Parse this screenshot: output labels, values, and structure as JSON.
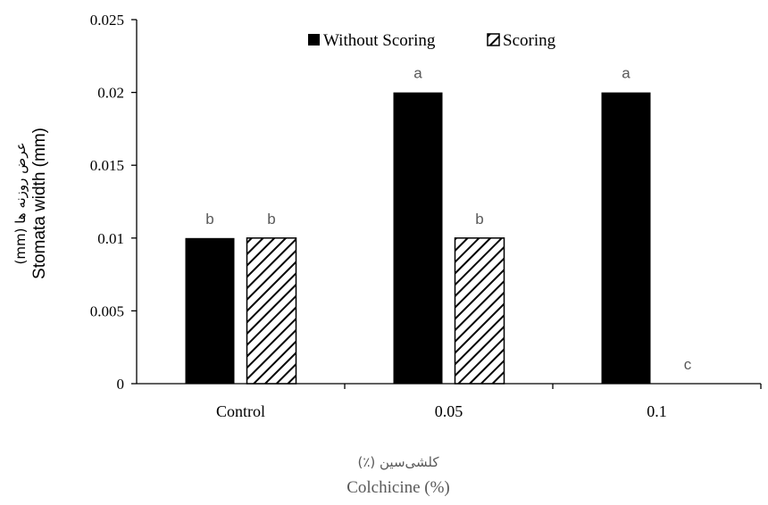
{
  "chart_data": {
    "type": "bar",
    "title": "",
    "categories": [
      "Control",
      "0.05",
      "0.1"
    ],
    "series": [
      {
        "name": "Without Scoring",
        "values": [
          0.01,
          0.02,
          0.02
        ],
        "letters": [
          "b",
          "a",
          "a"
        ],
        "fill": "solid"
      },
      {
        "name": "Scoring",
        "values": [
          0.01,
          0.01,
          0
        ],
        "letters": [
          "b",
          "b",
          "c"
        ],
        "fill": "hatched"
      }
    ],
    "ylim": [
      0,
      0.025
    ],
    "yticks": [
      "0",
      "0.005",
      "0.01",
      "0.015",
      "0.02",
      "0.025"
    ],
    "ylabel_fa": "عرض روزنه ها (mm)",
    "ylabel_en": "Stomata width (mm)",
    "xlabel_fa": "کلشی‌سین (٪)",
    "xlabel_en": "Colchicine (%)",
    "legend_position": "top-center",
    "grid": false
  },
  "colors": {
    "bar": "#000000",
    "axis": "#000000",
    "significance_letters": "#595959",
    "xlabel": "#595959"
  }
}
